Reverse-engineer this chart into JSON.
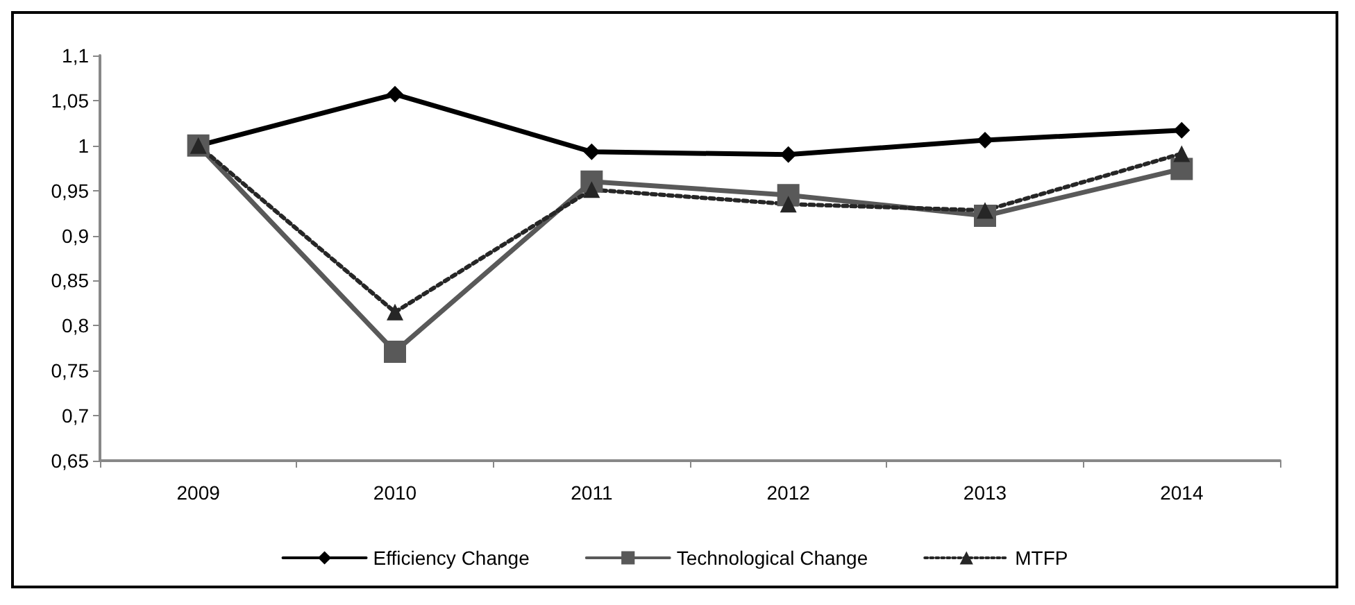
{
  "chart_data": {
    "type": "line",
    "categories": [
      "2009",
      "2010",
      "2011",
      "2012",
      "2013",
      "2014"
    ],
    "series": [
      {
        "name": "Efficiency Change",
        "color": "#000000",
        "marker": "diamond",
        "line_style": "solid",
        "values": [
          1.0,
          1.057,
          0.993,
          0.99,
          1.006,
          1.017
        ]
      },
      {
        "name": "Technological Change",
        "color": "#595959",
        "marker": "square",
        "line_style": "solid",
        "values": [
          1.0,
          0.771,
          0.96,
          0.945,
          0.922,
          0.974
        ]
      },
      {
        "name": "MTFP",
        "color": "#262626",
        "marker": "triangle",
        "line_style": "dotted",
        "values": [
          1.0,
          0.815,
          0.951,
          0.935,
          0.928,
          0.991
        ]
      }
    ],
    "ylim": [
      0.65,
      1.1
    ],
    "yticks": [
      {
        "value": 0.65,
        "label": "0,65"
      },
      {
        "value": 0.7,
        "label": "0,7"
      },
      {
        "value": 0.75,
        "label": "0,75"
      },
      {
        "value": 0.8,
        "label": "0,8"
      },
      {
        "value": 0.85,
        "label": "0,85"
      },
      {
        "value": 0.9,
        "label": "0,9"
      },
      {
        "value": 0.95,
        "label": "0,95"
      },
      {
        "value": 1,
        "label": "1"
      },
      {
        "value": 1.05,
        "label": "1,05"
      },
      {
        "value": 1.1,
        "label": "1,1"
      }
    ],
    "grid": false,
    "legend": "bottom"
  }
}
